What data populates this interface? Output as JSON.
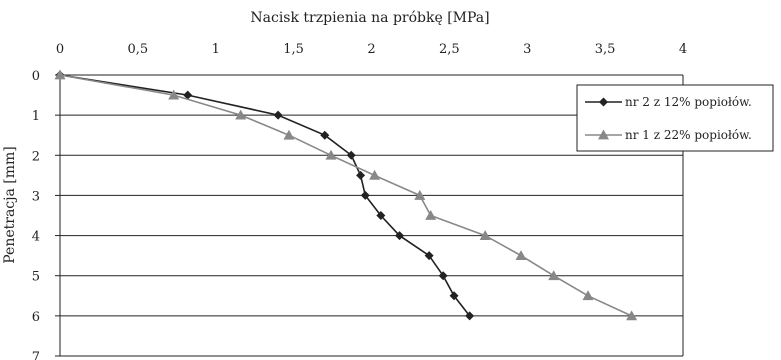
{
  "chart_data": {
    "type": "line",
    "title": "Nacisk trzpienia na próbkę [MPa]",
    "xlabel": "Nacisk trzpienia na próbkę [MPa]",
    "ylabel": "Penetracja [mm]",
    "xlim": [
      0,
      4
    ],
    "ylim": [
      0,
      7
    ],
    "x_axis_position": "top",
    "y_axis_inverted": true,
    "xticks": [
      "0",
      "0,5",
      "1",
      "1,5",
      "2",
      "2,5",
      "3",
      "3,5",
      "4"
    ],
    "yticks": [
      "0",
      "1",
      "2",
      "3",
      "4",
      "5",
      "6",
      "7"
    ],
    "grid": "horizontal",
    "legend_position": "right",
    "series": [
      {
        "name": "nr 2 z 12% popiołów.",
        "marker": "diamond",
        "color": "#222222",
        "points": [
          {
            "x": 0.0,
            "y": 0.0
          },
          {
            "x": 0.82,
            "y": 0.5
          },
          {
            "x": 1.4,
            "y": 1.0
          },
          {
            "x": 1.7,
            "y": 1.5
          },
          {
            "x": 1.87,
            "y": 2.0
          },
          {
            "x": 1.93,
            "y": 2.5
          },
          {
            "x": 1.96,
            "y": 3.0
          },
          {
            "x": 2.06,
            "y": 3.5
          },
          {
            "x": 2.18,
            "y": 4.0
          },
          {
            "x": 2.37,
            "y": 4.5
          },
          {
            "x": 2.46,
            "y": 5.0
          },
          {
            "x": 2.53,
            "y": 5.5
          },
          {
            "x": 2.63,
            "y": 6.0
          }
        ]
      },
      {
        "name": "nr 1 z 22% popiołów.",
        "marker": "triangle",
        "color": "#888888",
        "points": [
          {
            "x": 0.0,
            "y": 0.0
          },
          {
            "x": 0.73,
            "y": 0.5
          },
          {
            "x": 1.16,
            "y": 1.0
          },
          {
            "x": 1.47,
            "y": 1.5
          },
          {
            "x": 1.74,
            "y": 2.0
          },
          {
            "x": 2.02,
            "y": 2.5
          },
          {
            "x": 2.31,
            "y": 3.0
          },
          {
            "x": 2.38,
            "y": 3.5
          },
          {
            "x": 2.73,
            "y": 4.0
          },
          {
            "x": 2.96,
            "y": 4.5
          },
          {
            "x": 3.17,
            "y": 5.0
          },
          {
            "x": 3.39,
            "y": 5.5
          },
          {
            "x": 3.67,
            "y": 6.0
          }
        ]
      }
    ]
  }
}
